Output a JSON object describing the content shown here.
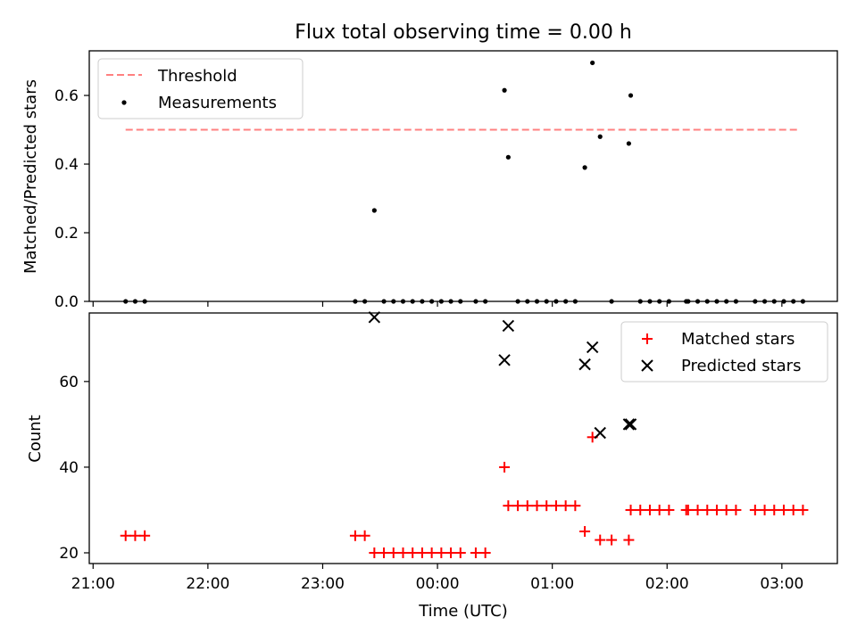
{
  "title": "Flux total observing time = 0.00 h",
  "chart_data": [
    {
      "type": "scatter",
      "title": "Flux total observing time = 0.00 h",
      "xlabel": "",
      "ylabel": "Matched/Predicted stars",
      "x_unit": "time (UTC)",
      "x_ticks": [
        "21:00",
        "22:00",
        "23:00",
        "00:00",
        "01:00",
        "02:00",
        "03:00"
      ],
      "xlim": [
        "20:58",
        "03:29"
      ],
      "ylim": [
        0,
        0.73
      ],
      "y_ticks": [
        0.0,
        0.2,
        0.4,
        0.6
      ],
      "y_tick_labels": [
        "0.0",
        "0.2",
        "0.4",
        "0.6"
      ],
      "legend_position": "upper-left",
      "threshold": {
        "name": "Threshold",
        "value": 0.5,
        "x_range": [
          "21:17",
          "03:09"
        ],
        "color": "#ff8080"
      },
      "series": [
        {
          "name": "Measurements",
          "color": "#000000",
          "points": [
            [
              "21:17",
              0
            ],
            [
              "21:22",
              0
            ],
            [
              "21:27",
              0
            ],
            [
              "23:17",
              0
            ],
            [
              "23:22",
              0
            ],
            [
              "23:27",
              0.265
            ],
            [
              "23:32",
              0
            ],
            [
              "23:37",
              0
            ],
            [
              "23:42",
              0
            ],
            [
              "23:47",
              0
            ],
            [
              "23:52",
              0
            ],
            [
              "23:57",
              0
            ],
            [
              "00:02",
              0
            ],
            [
              "00:07",
              0
            ],
            [
              "00:12",
              0
            ],
            [
              "00:20",
              0
            ],
            [
              "00:25",
              0
            ],
            [
              "00:35",
              0.615
            ],
            [
              "00:37",
              0.42
            ],
            [
              "00:42",
              0
            ],
            [
              "00:47",
              0
            ],
            [
              "00:52",
              0
            ],
            [
              "00:57",
              0
            ],
            [
              "01:02",
              0
            ],
            [
              "01:07",
              0
            ],
            [
              "01:12",
              0
            ],
            [
              "01:17",
              0.39
            ],
            [
              "01:21",
              0.695
            ],
            [
              "01:25",
              0.48
            ],
            [
              "01:31",
              0
            ],
            [
              "01:40",
              0.46
            ],
            [
              "01:41",
              0.6
            ],
            [
              "01:46",
              0
            ],
            [
              "01:51",
              0
            ],
            [
              "01:56",
              0
            ],
            [
              "02:01",
              0
            ],
            [
              "02:10",
              0
            ],
            [
              "02:11",
              0
            ],
            [
              "02:16",
              0
            ],
            [
              "02:21",
              0
            ],
            [
              "02:26",
              0
            ],
            [
              "02:31",
              0
            ],
            [
              "02:36",
              0
            ],
            [
              "02:46",
              0
            ],
            [
              "02:51",
              0
            ],
            [
              "02:56",
              0
            ],
            [
              "03:01",
              0
            ],
            [
              "03:06",
              0
            ],
            [
              "03:11",
              0
            ]
          ]
        }
      ]
    },
    {
      "type": "scatter",
      "title": "",
      "xlabel": "Time (UTC)",
      "ylabel": "Count",
      "x_ticks": [
        "21:00",
        "22:00",
        "23:00",
        "00:00",
        "01:00",
        "02:00",
        "03:00"
      ],
      "xlim": [
        "20:58",
        "03:29"
      ],
      "ylim": [
        17.5,
        76
      ],
      "y_ticks": [
        20,
        40,
        60
      ],
      "y_tick_labels": [
        "20",
        "40",
        "60"
      ],
      "legend_position": "upper-right",
      "series": [
        {
          "name": "Matched stars",
          "marker": "+",
          "color": "#ff0000",
          "points": [
            [
              "21:17",
              24
            ],
            [
              "21:22",
              24
            ],
            [
              "21:27",
              24
            ],
            [
              "23:17",
              24
            ],
            [
              "23:22",
              24
            ],
            [
              "23:27",
              20
            ],
            [
              "23:32",
              20
            ],
            [
              "23:37",
              20
            ],
            [
              "23:42",
              20
            ],
            [
              "23:47",
              20
            ],
            [
              "23:52",
              20
            ],
            [
              "23:57",
              20
            ],
            [
              "00:02",
              20
            ],
            [
              "00:07",
              20
            ],
            [
              "00:12",
              20
            ],
            [
              "00:20",
              20
            ],
            [
              "00:25",
              20
            ],
            [
              "00:35",
              40
            ],
            [
              "00:37",
              31
            ],
            [
              "00:42",
              31
            ],
            [
              "00:47",
              31
            ],
            [
              "00:52",
              31
            ],
            [
              "00:57",
              31
            ],
            [
              "01:02",
              31
            ],
            [
              "01:07",
              31
            ],
            [
              "01:12",
              31
            ],
            [
              "01:17",
              25
            ],
            [
              "01:21",
              47
            ],
            [
              "01:25",
              23
            ],
            [
              "01:31",
              23
            ],
            [
              "01:40",
              23
            ],
            [
              "01:41",
              30
            ],
            [
              "01:46",
              30
            ],
            [
              "01:51",
              30
            ],
            [
              "01:56",
              30
            ],
            [
              "02:01",
              30
            ],
            [
              "02:10",
              30
            ],
            [
              "02:11",
              30
            ],
            [
              "02:16",
              30
            ],
            [
              "02:21",
              30
            ],
            [
              "02:26",
              30
            ],
            [
              "02:31",
              30
            ],
            [
              "02:36",
              30
            ],
            [
              "02:46",
              30
            ],
            [
              "02:51",
              30
            ],
            [
              "02:56",
              30
            ],
            [
              "03:01",
              30
            ],
            [
              "03:06",
              30
            ],
            [
              "03:11",
              30
            ]
          ]
        },
        {
          "name": "Predicted stars",
          "marker": "x",
          "color": "#000000",
          "points": [
            [
              "23:27",
              75
            ],
            [
              "00:35",
              65
            ],
            [
              "00:37",
              73
            ],
            [
              "01:17",
              64
            ],
            [
              "01:21",
              68
            ],
            [
              "01:25",
              48
            ],
            [
              "01:40",
              50
            ],
            [
              "01:41",
              50
            ]
          ]
        }
      ]
    }
  ]
}
